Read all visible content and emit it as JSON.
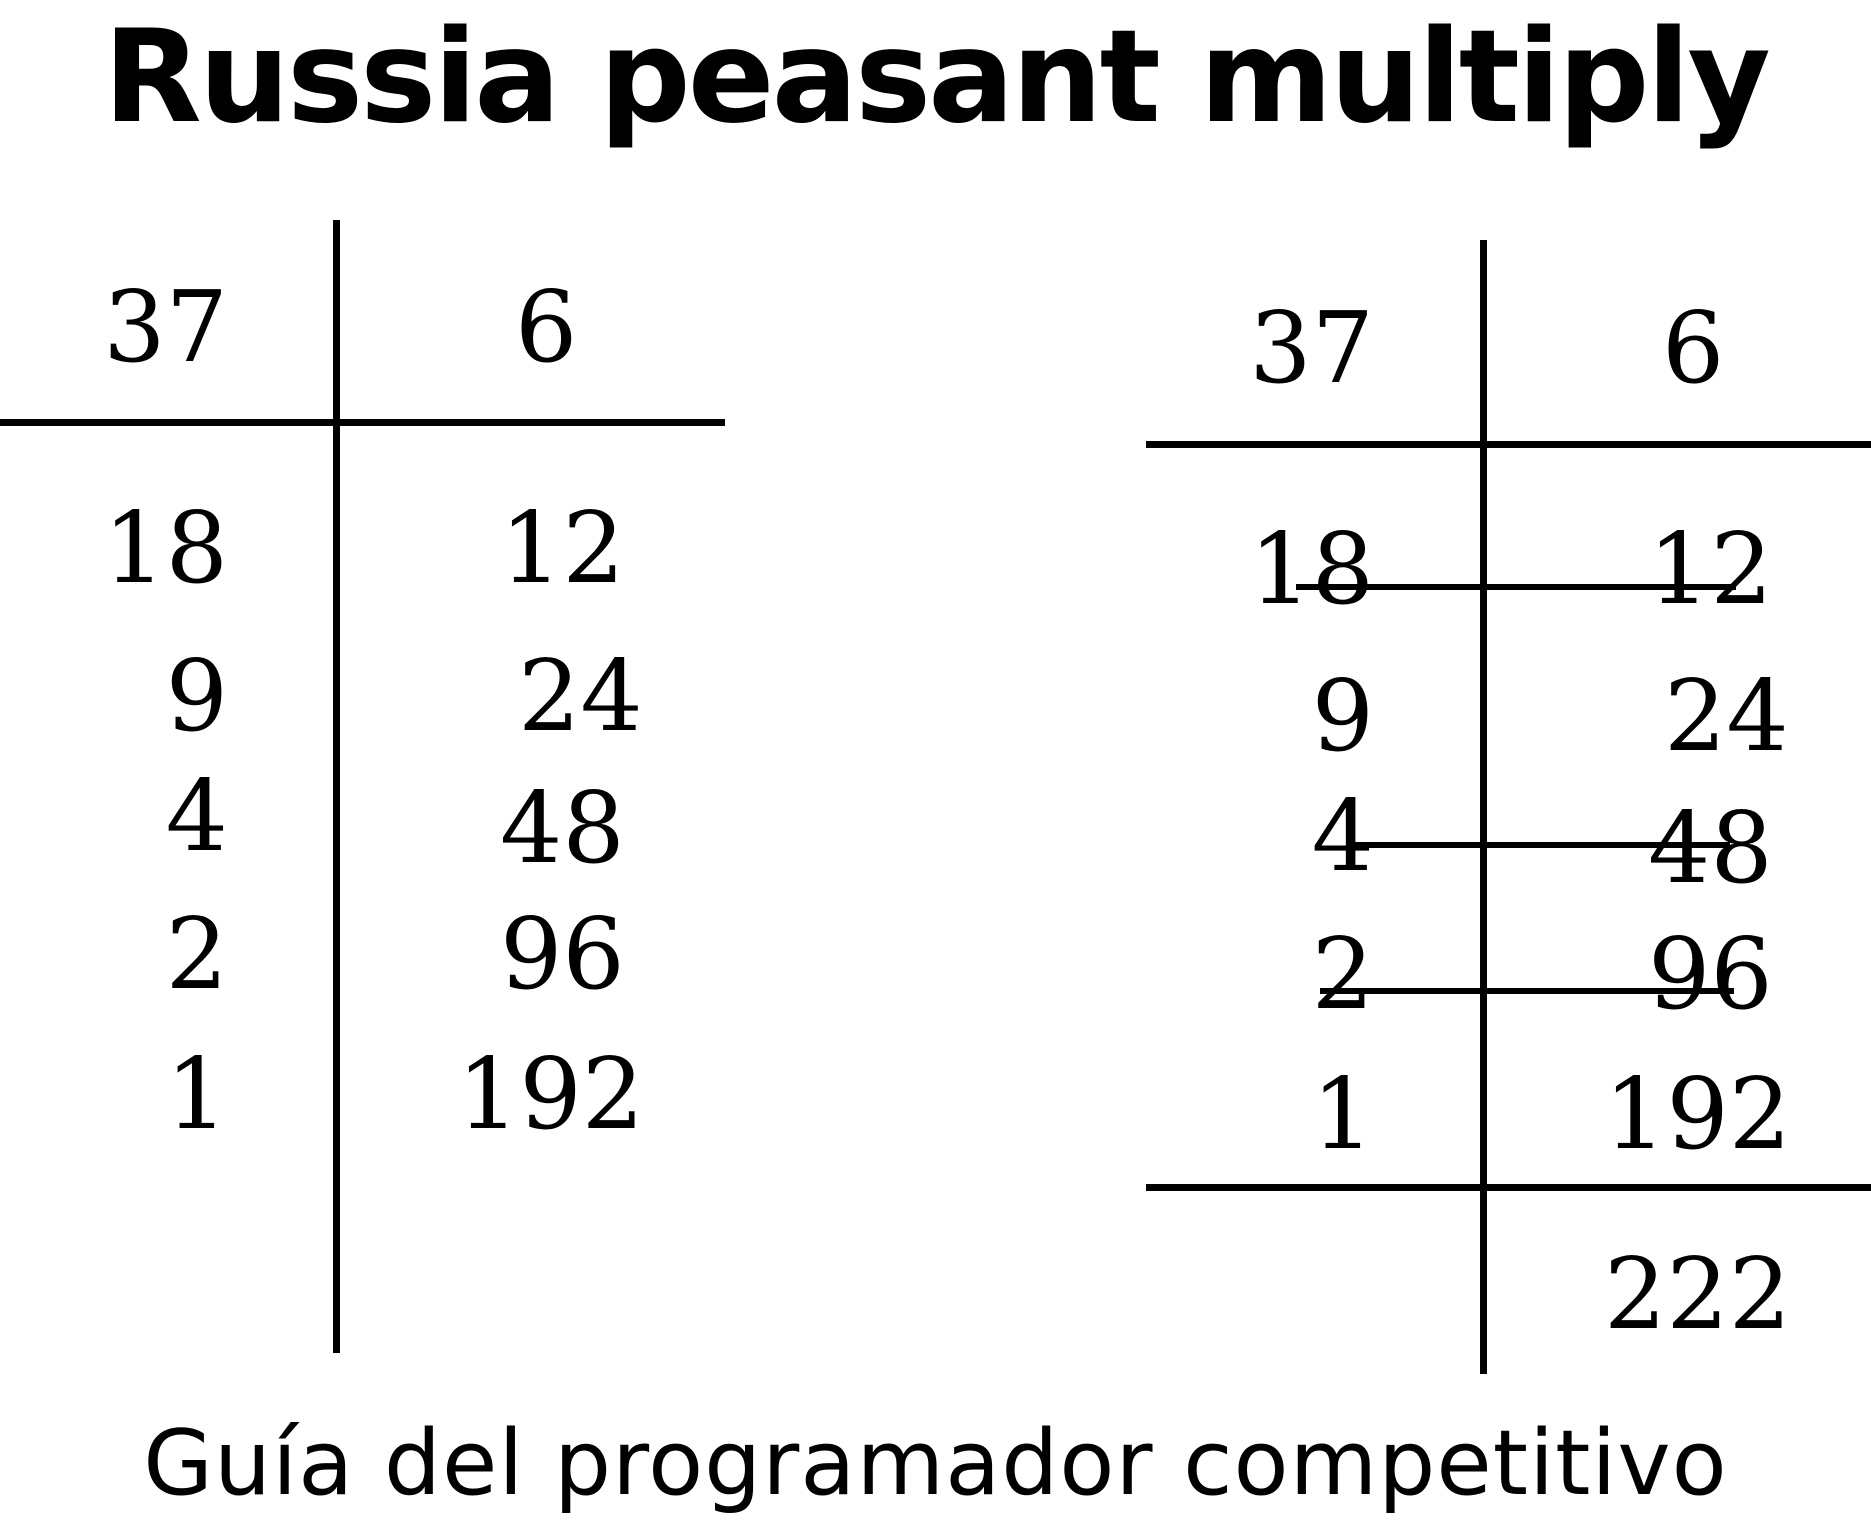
{
  "title": "Russia peasant multiply",
  "caption": "Guía del programador competitivo",
  "left_table": {
    "header": [
      "37",
      "6"
    ],
    "rows": [
      [
        "18",
        "12"
      ],
      [
        "9",
        "24"
      ],
      [
        "4",
        "48"
      ],
      [
        "2",
        "96"
      ],
      [
        "1",
        "192"
      ]
    ]
  },
  "right_table": {
    "header": [
      "37",
      "6"
    ],
    "rows": [
      [
        "18",
        "12"
      ],
      [
        "9",
        "24"
      ],
      [
        "4",
        "48"
      ],
      [
        "2",
        "96"
      ],
      [
        "1",
        "192"
      ]
    ],
    "crossed_out_rows": [
      0,
      2,
      3
    ],
    "result": "222"
  }
}
